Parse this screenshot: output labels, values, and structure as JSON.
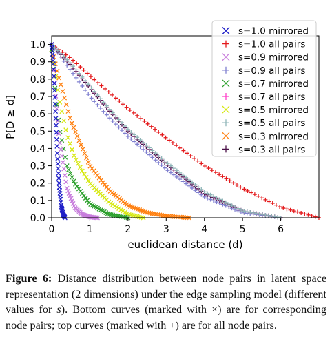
{
  "chart_data": {
    "type": "scatter",
    "xlabel": "euclidean distance (d)",
    "ylabel": "P[D ≥ d]",
    "xlim": [
      0,
      7
    ],
    "ylim": [
      0,
      1.05
    ],
    "xticks": [
      "0",
      "1",
      "2",
      "3",
      "4",
      "5",
      "6"
    ],
    "yticks": [
      "0.0",
      "0.1",
      "0.2",
      "0.3",
      "0.4",
      "0.5",
      "0.6",
      "0.7",
      "0.8",
      "0.9",
      "1.0"
    ],
    "grid": false,
    "legend_position": "top-right",
    "series": [
      {
        "name": "s=1.0 mirrored",
        "marker": "x",
        "color": "#1f1fc8",
        "dmax": 0.35,
        "x": [
          0.0,
          0.05,
          0.1,
          0.15,
          0.2,
          0.25,
          0.3,
          0.35
        ],
        "y": [
          1.0,
          0.88,
          0.62,
          0.36,
          0.18,
          0.07,
          0.02,
          0.0
        ]
      },
      {
        "name": "s=1.0 all pairs",
        "marker": "+",
        "color": "#e41a1c",
        "dmax": 7.0,
        "x": [
          0.0,
          0.5,
          1.0,
          2.0,
          3.0,
          4.0,
          5.0,
          6.0,
          7.0
        ],
        "y": [
          1.0,
          0.92,
          0.82,
          0.63,
          0.46,
          0.3,
          0.17,
          0.06,
          0.0
        ]
      },
      {
        "name": "s=0.9 mirrored",
        "marker": "x",
        "color": "#c77cdc",
        "dmax": 1.2,
        "x": [
          0.0,
          0.1,
          0.2,
          0.4,
          0.6,
          0.8,
          1.0,
          1.2
        ],
        "y": [
          1.0,
          0.72,
          0.45,
          0.17,
          0.06,
          0.02,
          0.005,
          0.0
        ]
      },
      {
        "name": "s=0.9 all pairs",
        "marker": "+",
        "color": "#7f7fcf",
        "dmax": 6.0,
        "x": [
          0.0,
          0.5,
          1.0,
          1.5,
          2.0,
          3.0,
          4.0,
          5.0,
          6.0
        ],
        "y": [
          1.0,
          0.85,
          0.7,
          0.58,
          0.47,
          0.28,
          0.12,
          0.03,
          0.0
        ]
      },
      {
        "name": "s=0.7 mirrored",
        "marker": "x",
        "color": "#2ca02c",
        "dmax": 2.0,
        "x": [
          0.0,
          0.1,
          0.2,
          0.4,
          0.6,
          1.0,
          1.5,
          2.0
        ],
        "y": [
          0.97,
          0.72,
          0.52,
          0.3,
          0.2,
          0.08,
          0.02,
          0.0
        ]
      },
      {
        "name": "s=0.7 all pairs",
        "marker": "+",
        "color": "#ff3ec8",
        "dmax": 6.0,
        "x": [
          0.0,
          0.5,
          1.0,
          1.5,
          2.0,
          3.0,
          4.0,
          5.0,
          6.0
        ],
        "y": [
          1.0,
          0.88,
          0.75,
          0.62,
          0.5,
          0.31,
          0.14,
          0.04,
          0.0
        ]
      },
      {
        "name": "s=0.5 mirrored",
        "marker": "x",
        "color": "#d6e80f",
        "dmax": 2.4,
        "x": [
          0.0,
          0.2,
          0.4,
          0.6,
          0.8,
          1.0,
          1.5,
          2.0,
          2.4
        ],
        "y": [
          0.97,
          0.68,
          0.48,
          0.35,
          0.27,
          0.2,
          0.09,
          0.02,
          0.0
        ]
      },
      {
        "name": "s=0.5 all pairs",
        "marker": "+",
        "color": "#8fb5b8",
        "dmax": 6.0,
        "x": [
          0.0,
          0.5,
          1.0,
          1.5,
          2.0,
          3.0,
          4.0,
          5.0,
          6.0
        ],
        "y": [
          1.0,
          0.89,
          0.76,
          0.63,
          0.51,
          0.32,
          0.15,
          0.04,
          0.0
        ]
      },
      {
        "name": "s=0.3 mirrored",
        "marker": "x",
        "color": "#ff7f0e",
        "dmax": 3.6,
        "x": [
          0.0,
          0.2,
          0.5,
          1.0,
          1.5,
          2.0,
          2.5,
          3.0,
          3.6
        ],
        "y": [
          0.97,
          0.8,
          0.56,
          0.3,
          0.16,
          0.07,
          0.03,
          0.01,
          0.0
        ]
      },
      {
        "name": "s=0.3 all pairs",
        "marker": "+",
        "color": "#4b1048",
        "dmax": 6.0,
        "x": [
          0.0,
          0.5,
          1.0,
          1.5,
          2.0,
          3.0,
          4.0,
          5.0,
          6.0
        ],
        "y": [
          1.0,
          0.88,
          0.75,
          0.62,
          0.5,
          0.31,
          0.14,
          0.04,
          0.0
        ]
      }
    ]
  },
  "caption": {
    "label": "Figure 6:",
    "text_before_s": "Distance distribution between node pairs in latent space representation (2 dimensions) under the edge sampling model (different values for ",
    "s_symbol": "s",
    "text_after_s": ").  Bottom curves (marked with ×) are for corresponding node pairs; top curves (marked with +) are for all node pairs."
  }
}
